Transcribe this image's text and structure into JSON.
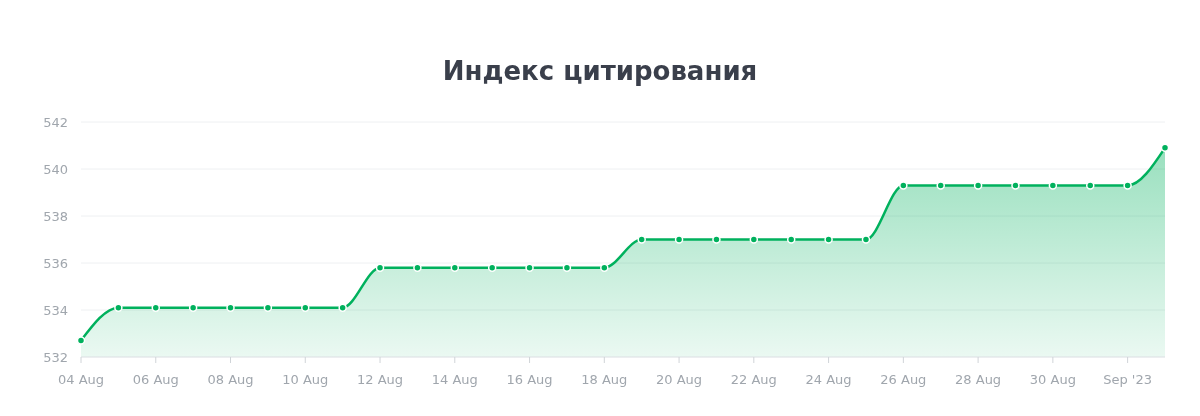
{
  "chart_data": {
    "type": "area",
    "title": "Индекс цитирования",
    "x": [
      "2023-08-04",
      "2023-08-05",
      "2023-08-06",
      "2023-08-07",
      "2023-08-08",
      "2023-08-09",
      "2023-08-10",
      "2023-08-11",
      "2023-08-12",
      "2023-08-13",
      "2023-08-14",
      "2023-08-15",
      "2023-08-16",
      "2023-08-17",
      "2023-08-18",
      "2023-08-19",
      "2023-08-20",
      "2023-08-21",
      "2023-08-22",
      "2023-08-23",
      "2023-08-24",
      "2023-08-25",
      "2023-08-26",
      "2023-08-27",
      "2023-08-28",
      "2023-08-29",
      "2023-08-30",
      "2023-08-31",
      "2023-09-01",
      "2023-09-02"
    ],
    "values": [
      532.7,
      534.1,
      534.1,
      534.1,
      534.1,
      534.1,
      534.1,
      534.1,
      535.8,
      535.8,
      535.8,
      535.8,
      535.8,
      535.8,
      535.8,
      537.0,
      537.0,
      537.0,
      537.0,
      537.0,
      537.0,
      537.0,
      539.3,
      539.3,
      539.3,
      539.3,
      539.3,
      539.3,
      539.3,
      540.9
    ],
    "color": "#00b15d",
    "xlim": [
      "2023-08-04",
      "2023-09-02"
    ],
    "xticks": [
      {
        "value": "2023-08-04",
        "label": "04 Aug"
      },
      {
        "value": "2023-08-06",
        "label": "06 Aug"
      },
      {
        "value": "2023-08-08",
        "label": "08 Aug"
      },
      {
        "value": "2023-08-10",
        "label": "10 Aug"
      },
      {
        "value": "2023-08-12",
        "label": "12 Aug"
      },
      {
        "value": "2023-08-14",
        "label": "14 Aug"
      },
      {
        "value": "2023-08-16",
        "label": "16 Aug"
      },
      {
        "value": "2023-08-18",
        "label": "18 Aug"
      },
      {
        "value": "2023-08-20",
        "label": "20 Aug"
      },
      {
        "value": "2023-08-22",
        "label": "22 Aug"
      },
      {
        "value": "2023-08-24",
        "label": "24 Aug"
      },
      {
        "value": "2023-08-26",
        "label": "26 Aug"
      },
      {
        "value": "2023-08-28",
        "label": "28 Aug"
      },
      {
        "value": "2023-08-30",
        "label": "30 Aug"
      },
      {
        "value": "2023-09-01",
        "label": "Sep '23"
      }
    ],
    "ylim": [
      532,
      542
    ],
    "yticks": [
      532,
      534,
      536,
      538,
      540,
      542
    ],
    "grid": "y",
    "marker": "circle",
    "line_style": "solid"
  }
}
